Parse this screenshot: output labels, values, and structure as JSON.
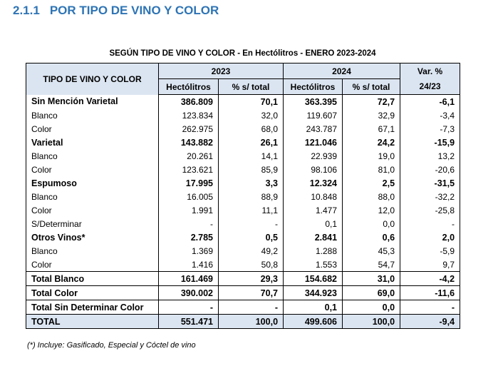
{
  "heading": {
    "number": "2.1.1",
    "title": "POR TIPO DE VINO Y COLOR"
  },
  "table": {
    "title": "SEGÚN TIPO DE VINO Y COLOR - En Hectólitros - ENERO 2023-2024",
    "header": {
      "label": "TIPO DE VINO Y COLOR",
      "years": [
        "2023",
        "2024"
      ],
      "var": [
        "Var. %",
        "24/23"
      ],
      "subheaders": [
        "Hectólitros",
        "% s/ total",
        "Hectólitros",
        "% s/ total"
      ]
    },
    "rows": [
      [
        "Sin Mención Varietal",
        "386.809",
        "70,1",
        "363.395",
        "72,7",
        "-6,1"
      ],
      [
        "Blanco",
        "123.834",
        "32,0",
        "119.607",
        "32,9",
        "-3,4"
      ],
      [
        "Color",
        "262.975",
        "68,0",
        "243.787",
        "67,1",
        "-7,3"
      ],
      [
        "Varietal",
        "143.882",
        "26,1",
        "121.046",
        "24,2",
        "-15,9"
      ],
      [
        "Blanco",
        "20.261",
        "14,1",
        "22.939",
        "19,0",
        "13,2"
      ],
      [
        "Color",
        "123.621",
        "85,9",
        "98.106",
        "81,0",
        "-20,6"
      ],
      [
        "Espumoso",
        "17.995",
        "3,3",
        "12.324",
        "2,5",
        "-31,5"
      ],
      [
        "Blanco",
        "16.005",
        "88,9",
        "10.848",
        "88,0",
        "-32,2"
      ],
      [
        "Color",
        "1.991",
        "11,1",
        "1.477",
        "12,0",
        "-25,8"
      ],
      [
        "S/Determinar",
        "-",
        "-",
        "0,1",
        "0,0",
        "-"
      ],
      [
        "Otros Vinos*",
        "2.785",
        "0,5",
        "2.841",
        "0,6",
        "2,0"
      ],
      [
        "Blanco",
        "1.369",
        "49,2",
        "1.288",
        "45,3",
        "-5,9"
      ],
      [
        "Color",
        "1.416",
        "50,8",
        "1.553",
        "54,7",
        "9,7"
      ],
      [
        "Total Blanco",
        "161.469",
        "29,3",
        "154.682",
        "31,0",
        "-4,2"
      ],
      [
        "Total Color",
        "390.002",
        "70,7",
        "344.923",
        "69,0",
        "-11,6"
      ],
      [
        "Total Sin Determinar Color",
        "-",
        "-",
        "0,1",
        "0,0",
        "-"
      ],
      [
        "TOTAL",
        "551.471",
        "100,0",
        "499.606",
        "100,0",
        "-9,4"
      ]
    ],
    "footnote": "(*) Incluye: Gasificado, Especial y Cóctel de vino"
  }
}
